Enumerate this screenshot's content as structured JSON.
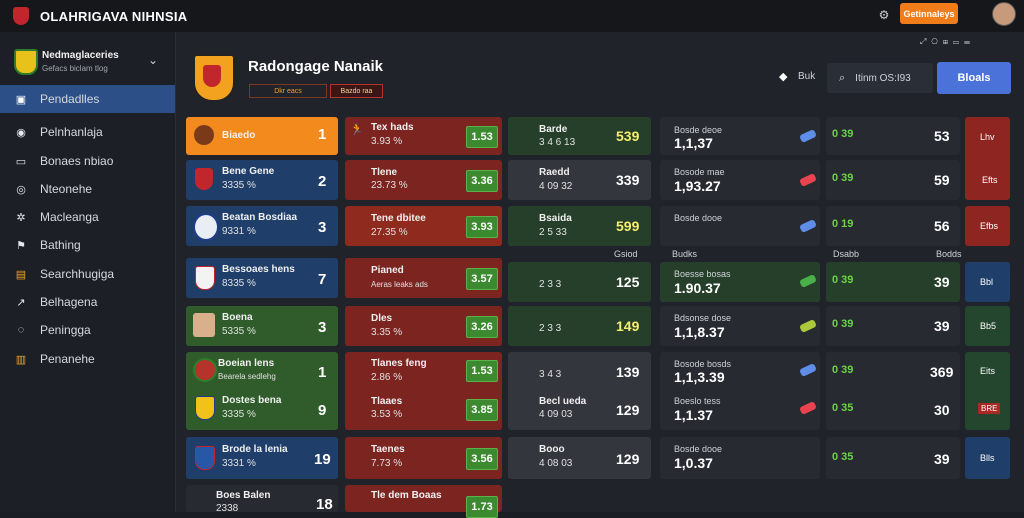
{
  "app": {
    "title": "OLAHRIGAVA NIHNSIA",
    "action_label": "Getinnaleys"
  },
  "topbar": {
    "icons": [
      "settings-icon",
      "avatar"
    ]
  },
  "header_right_icons": [
    "expand-icon",
    "bell-icon",
    "grid-icon",
    "window-icon",
    "menu-icon"
  ],
  "sidebar": {
    "account": {
      "name": "Nedmaglaceries",
      "sub": "Gefacs biclam tlog"
    },
    "items": [
      {
        "label": "Pendadlles",
        "active": true,
        "icon": "home-icon"
      },
      {
        "label": "Pelnhanlaja",
        "active": false,
        "icon": "user-icon"
      },
      {
        "label": "Bonaes nbiao",
        "active": false,
        "icon": "monitor-icon"
      },
      {
        "label": "Nteonehe",
        "active": false,
        "icon": "globe-icon"
      },
      {
        "label": "Macleanga",
        "active": false,
        "icon": "gear-icon"
      },
      {
        "label": "Bathing",
        "active": false,
        "icon": "flag-icon"
      },
      {
        "label": "Searchhugiga",
        "active": false,
        "icon": "trophy-icon"
      },
      {
        "label": "Belhagena",
        "active": false,
        "icon": "chart-icon"
      },
      {
        "label": "Peningga",
        "active": false,
        "icon": "settings-icon"
      },
      {
        "label": "Penanehe",
        "active": false,
        "icon": "document-icon"
      }
    ]
  },
  "page": {
    "title": "Radongage Nanaik",
    "tags": [
      "Dkr eacs",
      "Bazdo raa"
    ],
    "search_placeholder": "Itinm OS:I93",
    "filter_label": "Buk",
    "button_label": "Bloals"
  },
  "divider_labels": {
    "c3": "Gsiod",
    "c4": "Budks",
    "c5": "Dsabb",
    "c6": "Bodds"
  },
  "rows": [
    {
      "c1": {
        "name": "Biaedo",
        "sub": "",
        "score": "1",
        "style": "orange"
      },
      "c2": {
        "name": "Tex hads",
        "sub": "3.93 %",
        "box": "1.53"
      },
      "c3": {
        "name": "Barde",
        "sub": "3 4 6 13",
        "num": "539"
      },
      "c4": {
        "name": "Bosde deoe",
        "num": "1,1,37",
        "bet": "0 39"
      },
      "c5": {
        "num": "53"
      },
      "c6": {
        "label": "Lhv"
      }
    },
    {
      "c1": {
        "name": "Bene Gene",
        "sub": "3335 %",
        "score": "2",
        "style": "blue"
      },
      "c2": {
        "name": "Tlene",
        "sub": "23.73 %",
        "box": "3.36"
      },
      "c3": {
        "name": "Raedd",
        "sub": "4 09 32",
        "num": "339"
      },
      "c4": {
        "name": "Bosode mae",
        "num": "1,93.27",
        "bet": "0 39"
      },
      "c5": {
        "num": "59"
      },
      "c6": {
        "label": "Efts"
      }
    },
    {
      "c1": {
        "name": "Beatan Bosdiaa",
        "sub": "9331 %",
        "score": "3",
        "style": "blue"
      },
      "c2": {
        "name": "Tene dbitee",
        "sub": "27.35 %",
        "box": "3.93"
      },
      "c3": {
        "name": "Bsaida",
        "sub": "2 5 33",
        "num": "599"
      },
      "c4": {
        "name": "Bosde dooe",
        "num": "",
        "bet": "0 19"
      },
      "c5": {
        "num": "56"
      },
      "c6": {
        "label": "Efbs"
      }
    },
    {
      "c1": {
        "name": "Bessoaes hens",
        "sub": "8335 %",
        "score": "7",
        "style": "blue"
      },
      "c2": {
        "name": "Pianed",
        "sub": "Aeras leaks ads",
        "box": "3.57"
      },
      "c3": {
        "name": "",
        "sub": "2 3 3",
        "num": "125"
      },
      "c4": {
        "name": "Boesse bosas",
        "num": "1.90.37",
        "bet": "0 39"
      },
      "c5": {
        "num": "39"
      },
      "c6": {
        "label": "Bbl"
      }
    },
    {
      "c1": {
        "name": "Boena",
        "sub": "5335 %",
        "score": "3",
        "style": "green"
      },
      "c2": {
        "name": "Dles",
        "sub": "3.35 %",
        "box": "3.26"
      },
      "c3": {
        "name": "",
        "sub": "2 3 3",
        "num": "149"
      },
      "c4": {
        "name": "Bdsonse dose",
        "num": "1,1,8.37",
        "bet": "0 39"
      },
      "c5": {
        "num": "39"
      },
      "c6": {
        "label": "Bb5"
      }
    },
    {
      "c1": {
        "name": "Boeian lens",
        "sub": "Bearela sedlehg",
        "score": "1",
        "style": "green"
      },
      "c2": {
        "name": "Tlanes feng",
        "sub": "2.86 %",
        "box": "1.53"
      },
      "c3": {
        "name": "",
        "sub": "3 4 3",
        "num": "139"
      },
      "c4": {
        "name": "Bosode bosds",
        "num": "1,1,3.39",
        "bet": "0 39"
      },
      "c5": {
        "num": "369"
      },
      "c6": {
        "label": "Eits"
      }
    },
    {
      "c1": {
        "name": "Dostes bena",
        "sub": "3335 %",
        "score": "9",
        "style": "green"
      },
      "c2": {
        "name": "Tlaaes",
        "sub": "3.53 %",
        "box": "3.85"
      },
      "c3": {
        "name": "Becl ueda",
        "sub": "4 09 03",
        "num": "129"
      },
      "c4": {
        "name": "Boeslo tess",
        "num": "1,1.37",
        "bet": "0 35"
      },
      "c5": {
        "num": "30"
      },
      "c6": {
        "label": "BRE"
      }
    },
    {
      "c1": {
        "name": "Brode la lenia",
        "sub": "3331 %",
        "score": "19",
        "style": "blue"
      },
      "c2": {
        "name": "Taenes",
        "sub": "7.73 %",
        "box": "3.56"
      },
      "c3": {
        "name": "Booo",
        "sub": "4 08 03",
        "num": "129"
      },
      "c4": {
        "name": "Bosde dooe",
        "num": "1,0.37",
        "bet": "0 35"
      },
      "c5": {
        "num": "39"
      },
      "c6": {
        "label": "Blls"
      }
    },
    {
      "c1": {
        "name": "Boes Balen",
        "sub": "2338",
        "score": "18",
        "style": "dark"
      },
      "c2": {
        "name": "Tle dem Boaas",
        "sub": "",
        "box": "1.73"
      }
    }
  ]
}
